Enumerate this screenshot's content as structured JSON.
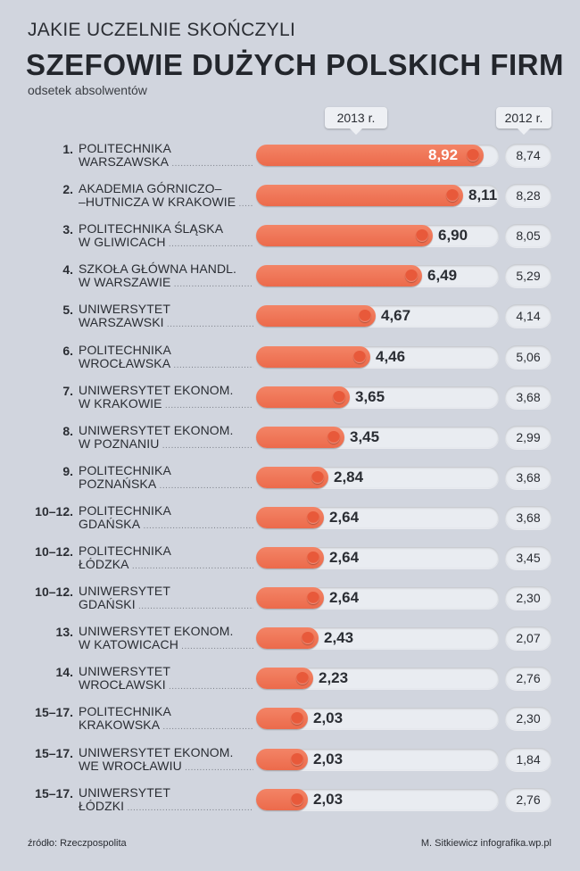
{
  "header": {
    "kicker": "JAKIE UCZELNIE SKOŃCZYLI",
    "title": "SZEFOWIE DUŻYCH POLSKICH FIRM",
    "subtitle": "odsetek absolwentów"
  },
  "columns": {
    "year_2013": "2013 r.",
    "year_2012": "2012 r."
  },
  "footer": {
    "source": "źródło: Rzeczpospolita",
    "credit": "M. Sitkiewicz infografika.wp.pl"
  },
  "colors": {
    "bar": "#ec6a4b",
    "background": "#d1d5de",
    "track": "#e9ecf1"
  },
  "chart_data": {
    "type": "bar",
    "x_max": 9.5,
    "series": [
      {
        "name": "2013 r.",
        "values": [
          8.92,
          8.11,
          6.9,
          6.49,
          4.67,
          4.46,
          3.65,
          3.45,
          2.84,
          2.64,
          2.64,
          2.64,
          2.43,
          2.23,
          2.03,
          2.03,
          2.03
        ]
      },
      {
        "name": "2012 r.",
        "values": [
          8.74,
          8.28,
          8.05,
          5.29,
          4.14,
          5.06,
          3.68,
          2.99,
          3.68,
          3.68,
          3.45,
          2.3,
          2.07,
          2.76,
          2.3,
          1.84,
          2.76
        ]
      }
    ],
    "rows": [
      {
        "rank": "1.",
        "line1": "POLITECHNIKA",
        "line2": "WARSZAWSKA",
        "v2013": "8,92",
        "v2012": "8,74"
      },
      {
        "rank": "2.",
        "line1": "AKADEMIA GÓRNICZO–",
        "line2": "–HUTNICZA W KRAKOWIE",
        "v2013": "8,11",
        "v2012": "8,28"
      },
      {
        "rank": "3.",
        "line1": "POLITECHNIKA ŚLĄSKA",
        "line2": "W GLIWICACH",
        "v2013": "6,90",
        "v2012": "8,05"
      },
      {
        "rank": "4.",
        "line1": "SZKOŁA GŁÓWNA HANDL.",
        "line2": "W WARSZAWIE",
        "v2013": "6,49",
        "v2012": "5,29"
      },
      {
        "rank": "5.",
        "line1": "UNIWERSYTET",
        "line2": "WARSZAWSKI",
        "v2013": "4,67",
        "v2012": "4,14"
      },
      {
        "rank": "6.",
        "line1": "POLITECHNIKA",
        "line2": "WROCŁAWSKA",
        "v2013": "4,46",
        "v2012": "5,06"
      },
      {
        "rank": "7.",
        "line1": "UNIWERSYTET EKONOM.",
        "line2": "W KRAKOWIE",
        "v2013": "3,65",
        "v2012": "3,68"
      },
      {
        "rank": "8.",
        "line1": "UNIWERSYTET EKONOM.",
        "line2": "W POZNANIU",
        "v2013": "3,45",
        "v2012": "2,99"
      },
      {
        "rank": "9.",
        "line1": "POLITECHNIKA",
        "line2": "POZNAŃSKA",
        "v2013": "2,84",
        "v2012": "3,68"
      },
      {
        "rank": "10–12.",
        "line1": "POLITECHNIKA",
        "line2": "GDAŃSKA",
        "v2013": "2,64",
        "v2012": "3,68"
      },
      {
        "rank": "10–12.",
        "line1": "POLITECHNIKA",
        "line2": "ŁÓDZKA",
        "v2013": "2,64",
        "v2012": "3,45"
      },
      {
        "rank": "10–12.",
        "line1": "UNIWERSYTET",
        "line2": "GDAŃSKI",
        "v2013": "2,64",
        "v2012": "2,30"
      },
      {
        "rank": "13.",
        "line1": "UNIWERSYTET EKONOM.",
        "line2": "W KATOWICACH",
        "v2013": "2,43",
        "v2012": "2,07"
      },
      {
        "rank": "14.",
        "line1": "UNIWERSYTET",
        "line2": "WROCŁAWSKI",
        "v2013": "2,23",
        "v2012": "2,76"
      },
      {
        "rank": "15–17.",
        "line1": "POLITECHNIKA",
        "line2": "KRAKOWSKA",
        "v2013": "2,03",
        "v2012": "2,30"
      },
      {
        "rank": "15–17.",
        "line1": "UNIWERSYTET EKONOM.",
        "line2": "WE WROCŁAWIU",
        "v2013": "2,03",
        "v2012": "1,84"
      },
      {
        "rank": "15–17.",
        "line1": "UNIWERSYTET",
        "line2": "ŁÓDZKI",
        "v2013": "2,03",
        "v2012": "2,76"
      }
    ]
  }
}
